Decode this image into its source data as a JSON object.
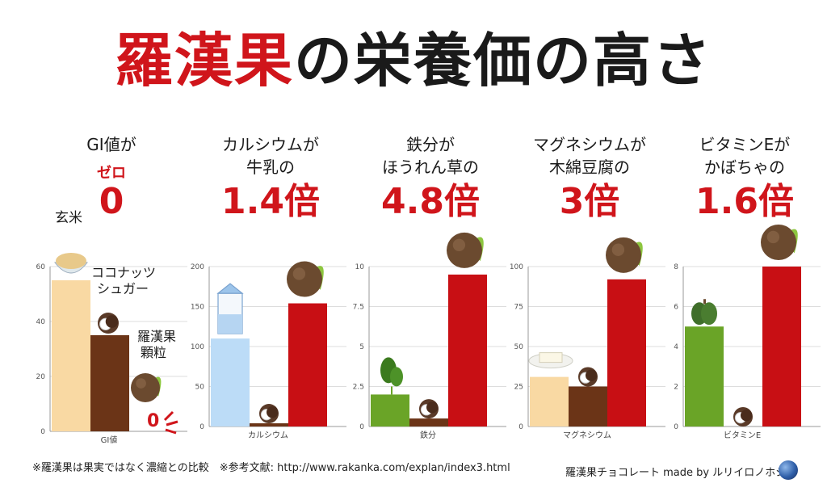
{
  "title": {
    "highlight": "羅漢果",
    "rest": "の栄養価の高さ"
  },
  "colors": {
    "red": "#d0151b",
    "beige": "#f9d9a3",
    "brown": "#6b3417",
    "blue": "#bcdcf7",
    "green": "#6aa427",
    "dark_red": "#c80f14"
  },
  "panels": [
    {
      "head_lines": [
        "GI値が",
        ""
      ],
      "small": "ゼロ",
      "big": "0"
    },
    {
      "head_lines": [
        "カルシウムが",
        "牛乳の"
      ],
      "small": "",
      "big": "1.4倍"
    },
    {
      "head_lines": [
        "鉄分が",
        "ほうれん草の"
      ],
      "small": "",
      "big": "4.8倍"
    },
    {
      "head_lines": [
        "マグネシウムが",
        "木綿豆腐の"
      ],
      "small": "",
      "big": "3倍"
    },
    {
      "head_lines": [
        "ビタミンEが",
        "かぼちゃの"
      ],
      "small": "",
      "big": "1.6倍"
    }
  ],
  "gi_labels": {
    "genmai": "玄米",
    "coconut_1": "ココナッツ",
    "coconut_2": "シュガー",
    "rakanka_1": "羅漢果",
    "rakanka_2": "顆粒",
    "zero_value": "0"
  },
  "chart_data": [
    {
      "type": "bar",
      "xlabel": "GI値",
      "ylim": [
        0,
        60
      ],
      "yticks": [
        0,
        20,
        40,
        60
      ],
      "categories": [
        "玄米",
        "ココナッツシュガー",
        "羅漢果顆粒"
      ],
      "values": [
        55,
        35,
        0
      ],
      "colors": [
        "#f9d9a3",
        "#6b3417",
        "#c80f14"
      ]
    },
    {
      "type": "bar",
      "xlabel": "カルシウム",
      "ylim": [
        0,
        200
      ],
      "yticks": [
        0,
        50,
        100,
        150,
        200
      ],
      "categories": [
        "牛乳",
        "ココナッツシュガー",
        "羅漢果顆粒"
      ],
      "values": [
        110,
        4,
        154
      ],
      "colors": [
        "#bcdcf7",
        "#6b3417",
        "#c80f14"
      ]
    },
    {
      "type": "bar",
      "xlabel": "鉄分",
      "ylim": [
        0,
        10
      ],
      "yticks": [
        0,
        2.5,
        5,
        7.5,
        10
      ],
      "categories": [
        "ほうれん草",
        "ココナッツシュガー",
        "羅漢果顆粒"
      ],
      "values": [
        2,
        0.5,
        9.5
      ],
      "colors": [
        "#6aa427",
        "#6b3417",
        "#c80f14"
      ]
    },
    {
      "type": "bar",
      "xlabel": "マグネシウム",
      "ylim": [
        0,
        100
      ],
      "yticks": [
        0,
        25,
        50,
        75,
        100
      ],
      "categories": [
        "木綿豆腐",
        "ココナッツシュガー",
        "羅漢果顆粒"
      ],
      "values": [
        31,
        25,
        92
      ],
      "colors": [
        "#f9d9a3",
        "#6b3417",
        "#c80f14"
      ]
    },
    {
      "type": "bar",
      "xlabel": "ビタミンE",
      "ylim": [
        0,
        8
      ],
      "yticks": [
        0,
        2,
        4,
        6,
        8
      ],
      "categories": [
        "かぼちゃ",
        "ココナッツシュガー",
        "羅漢果顆粒"
      ],
      "values": [
        5,
        0,
        8
      ],
      "colors": [
        "#6aa427",
        "#6b3417",
        "#c80f14"
      ]
    }
  ],
  "footnote": "※羅漢果は果実ではなく濃縮との比較　※参考文献: http://www.rakanka.com/explan/index3.html",
  "credit": "羅漢果チョコレート made by ルリイロノホシ"
}
